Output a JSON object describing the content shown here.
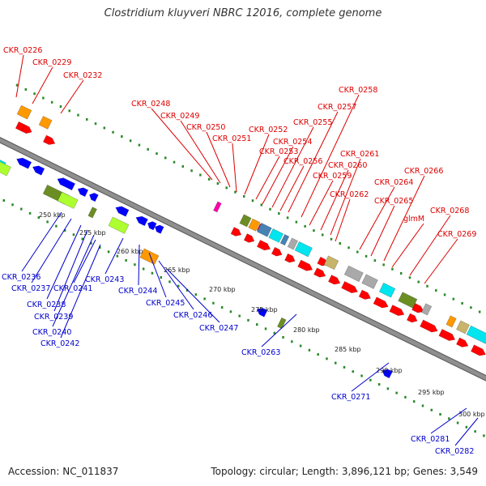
{
  "title": "Clostridium kluyveri NBRC 12016, complete genome",
  "footer": {
    "accession": "Accession: NC_011837",
    "summary": "Topology: circular; Length: 3,896,121 bp; Genes: 3,549"
  },
  "colors": {
    "forward_label": "#dd0000",
    "reverse_label": "#0000cc",
    "backbone": "#8f8f8f",
    "tick": "#2a8a2a",
    "forward_gene": "#ff0000",
    "reverse_gene": "#0000ff",
    "rna_olive": "#6b8e23",
    "rna_lime": "#adff2f",
    "rna_orange": "#ff9900",
    "rna_cyan": "#00e5ee",
    "rna_steel": "#4682b4",
    "rna_gray": "#a9a9a9",
    "rna_tan": "#c8b46a",
    "rna_magenta": "#ff00aa"
  },
  "scale_labels": [
    "250 kbp",
    "255 kbp",
    "260 kbp",
    "265 kbp",
    "270 kbp",
    "275 kbp",
    "280 kbp",
    "285 kbp",
    "290 kbp",
    "295 kbp",
    "300 kbp"
  ],
  "forward_labels": [
    "CKR_0226",
    "CKR_0229",
    "CKR_0232",
    "CKR_0248",
    "CKR_0249",
    "CKR_0250",
    "CKR_0251",
    "CKR_0252",
    "CKR_0253",
    "CKR_0254",
    "CKR_0255",
    "CKR_0256",
    "CKR_0257",
    "CKR_0258",
    "CKR_0259",
    "CKR_0260",
    "CKR_0261",
    "CKR_0262",
    "CKR_0264",
    "CKR_0265",
    "CKR_0266",
    "glmM",
    "CKR_0268",
    "CKR_0269"
  ],
  "reverse_labels": [
    "CKR_0236",
    "CKR_0237",
    "CKR_0238",
    "CKR_0239",
    "CKR_0240",
    "CKR_0241",
    "CKR_0242",
    "CKR_0243",
    "CKR_0244",
    "CKR_0245",
    "CKR_0246",
    "CKR_0247",
    "CKR_0263",
    "CKR_0271",
    "CKR_0281",
    "CKR_0282"
  ]
}
